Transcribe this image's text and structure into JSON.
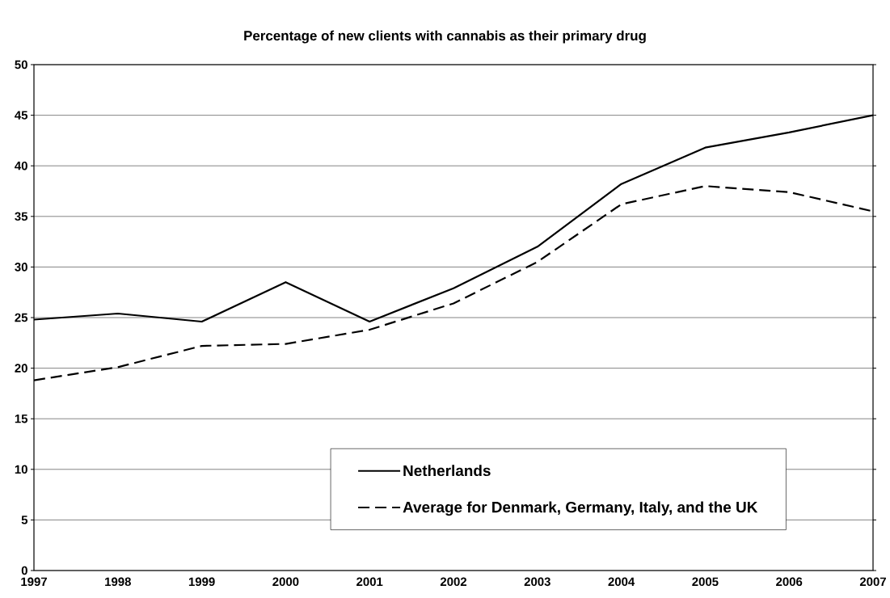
{
  "chart_data": {
    "type": "line",
    "title": "Percentage of new clients with cannabis as their primary drug",
    "x": [
      1997,
      1998,
      1999,
      2000,
      2001,
      2002,
      2003,
      2004,
      2005,
      2006,
      2007
    ],
    "series": [
      {
        "name": "Netherlands",
        "color": "#000000",
        "line_style": "solid",
        "values": [
          24.8,
          25.4,
          24.6,
          28.5,
          24.6,
          27.9,
          32.0,
          38.2,
          41.8,
          43.3,
          45.0
        ]
      },
      {
        "name": "Average for Denmark, Germany, Italy, and the UK",
        "color": "#000000",
        "line_style": "dashed",
        "values": [
          18.8,
          20.1,
          22.2,
          22.4,
          23.8,
          26.4,
          30.5,
          36.2,
          38.0,
          37.4,
          35.5
        ]
      }
    ],
    "xlim": [
      1997,
      2007
    ],
    "xticks": [
      1997,
      1998,
      1999,
      2000,
      2001,
      2002,
      2003,
      2004,
      2005,
      2006,
      2007
    ],
    "ylim": [
      0,
      50
    ],
    "yticks": [
      0,
      5,
      10,
      15,
      20,
      25,
      30,
      35,
      40,
      45,
      50
    ],
    "grid": "y",
    "legend": "bottom",
    "marker": "none"
  }
}
